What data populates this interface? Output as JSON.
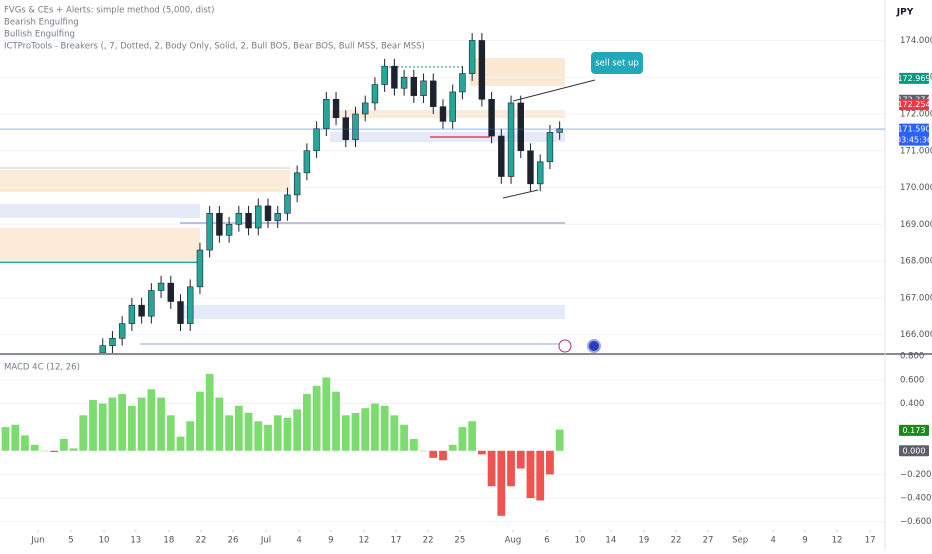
{
  "header": {
    "currency": "JPY"
  },
  "chart_data": [
    {
      "type": "candlestick",
      "legend_lines": [
        "FVGs & CEs + Alerts: simple method (5,000, dist)",
        "Bearish Engulfing",
        "Bullish Engulfing",
        "ICTProTools - Breakers (, 7, Dotted, 2, Body Only, Solid, 2, Bull BOS, Bear BOS, Bull MSS, Bear MSS)"
      ],
      "annotation": "sell set up",
      "x": [
        2,
        2.3,
        2.6,
        2.9,
        3.2,
        3.5,
        3.8,
        4.1,
        4.4,
        4.7,
        5,
        5.3,
        5.6,
        5.9,
        6.2,
        6.5,
        6.8,
        7.1,
        7.4,
        7.7,
        8,
        8.3,
        8.6,
        8.9,
        9.2,
        9.5,
        9.8,
        10.1,
        10.4,
        10.7,
        11,
        11.3,
        11.6,
        11.9,
        12.2,
        12.5,
        12.8,
        13.1,
        13.4,
        13.7,
        14,
        14.3,
        14.6,
        14.9,
        15.2,
        15.5,
        15.8,
        16.1
      ],
      "open": [
        165.5,
        165.7,
        165.9,
        166.3,
        166.8,
        166.5,
        167.2,
        167.4,
        166.9,
        166.3,
        167.3,
        168.3,
        169.3,
        168.7,
        169.0,
        169.3,
        168.9,
        169.5,
        169.1,
        169.3,
        169.8,
        170.4,
        171.0,
        171.6,
        172.4,
        171.9,
        171.3,
        172.0,
        172.3,
        172.8,
        173.3,
        172.7,
        173.0,
        172.5,
        172.9,
        172.2,
        171.8,
        172.6,
        173.1,
        174.0,
        172.4,
        171.4,
        170.3,
        172.3,
        171.0,
        170.1,
        170.7,
        171.5
      ],
      "high": [
        165.9,
        166.1,
        166.5,
        167.0,
        167.0,
        167.4,
        167.6,
        167.6,
        167.1,
        167.5,
        168.5,
        169.5,
        169.5,
        169.2,
        169.5,
        169.5,
        169.7,
        169.7,
        169.5,
        170.0,
        170.6,
        171.2,
        171.8,
        172.6,
        172.6,
        172.1,
        172.2,
        172.5,
        173.0,
        173.5,
        173.5,
        173.2,
        173.2,
        173.1,
        173.1,
        172.4,
        172.8,
        173.3,
        174.2,
        174.2,
        172.6,
        171.6,
        172.5,
        172.5,
        171.2,
        170.9,
        171.7,
        171.8
      ],
      "low": [
        165.3,
        165.5,
        165.7,
        166.1,
        166.3,
        166.3,
        167.0,
        166.7,
        166.1,
        166.1,
        167.1,
        168.1,
        168.5,
        168.5,
        168.8,
        168.7,
        168.7,
        168.9,
        168.9,
        169.1,
        169.6,
        170.2,
        170.8,
        171.4,
        171.7,
        171.1,
        171.1,
        171.8,
        172.1,
        172.6,
        172.5,
        172.5,
        172.3,
        172.3,
        172.0,
        171.6,
        171.6,
        172.4,
        172.9,
        172.2,
        171.2,
        170.1,
        170.1,
        170.8,
        169.9,
        169.9,
        170.5,
        171.3
      ],
      "close": [
        165.7,
        165.9,
        166.3,
        166.8,
        166.5,
        167.2,
        167.4,
        166.9,
        166.3,
        167.3,
        168.3,
        169.3,
        168.7,
        169.0,
        169.3,
        168.9,
        169.5,
        169.1,
        169.3,
        169.8,
        170.4,
        171.0,
        171.6,
        172.4,
        171.9,
        171.3,
        172.0,
        172.3,
        172.8,
        173.3,
        172.7,
        173.0,
        172.5,
        172.9,
        172.2,
        171.8,
        172.6,
        173.1,
        174.0,
        172.4,
        171.4,
        170.3,
        172.3,
        171.0,
        170.1,
        170.7,
        171.5,
        171.6
      ],
      "up_color": "#26a69a",
      "down_color": "#1e222d",
      "xlim": [
        -1.17,
        26.14
      ],
      "ylim": [
        165.5,
        175.1
      ],
      "yticks": [
        {
          "value": 166,
          "label": "166.000"
        },
        {
          "value": 167,
          "label": "167.000"
        },
        {
          "value": 168,
          "label": "168.000"
        },
        {
          "value": 169,
          "label": "169.000"
        },
        {
          "value": 170,
          "label": "170.000"
        },
        {
          "value": 171,
          "label": "171.000"
        },
        {
          "value": 172,
          "label": "172.000"
        },
        {
          "value": 173,
          "label": "173.000"
        },
        {
          "value": 174,
          "label": "174.000"
        }
      ],
      "price_labels": [
        {
          "value": 172.969,
          "label": "172.969",
          "color": "#089981"
        },
        {
          "value": 172.374,
          "label": "172.374",
          "color": "#5d606b"
        },
        {
          "value": 172.254,
          "label": "172.254",
          "color": "#f23645"
        },
        {
          "value": 171.59,
          "label": "171.590",
          "color": "#2962ff",
          "countdown": "03:45:36"
        }
      ]
    },
    {
      "type": "bar",
      "title": "MACD 4C (12, 26)",
      "x": [
        -1,
        -0.7,
        -0.4,
        -0.1,
        0.2,
        0.5,
        0.8,
        1.1,
        1.4,
        1.7,
        2,
        2.3,
        2.6,
        2.9,
        3.2,
        3.5,
        3.8,
        4.1,
        4.4,
        4.7,
        5,
        5.3,
        5.6,
        5.9,
        6.2,
        6.5,
        6.8,
        7.1,
        7.4,
        7.7,
        8,
        8.3,
        8.6,
        8.9,
        9.2,
        9.5,
        9.8,
        10.1,
        10.4,
        10.7,
        11,
        11.3,
        11.6,
        11.9,
        12.2,
        12.5,
        12.8,
        13.1,
        13.4,
        13.7,
        14,
        14.3,
        14.6,
        14.9,
        15.2,
        15.5,
        15.8,
        16.1
      ],
      "values": [
        0.2,
        0.22,
        0.13,
        0.05,
        0.0,
        -0.01,
        0.1,
        0.02,
        0.3,
        0.43,
        0.4,
        0.45,
        0.48,
        0.38,
        0.45,
        0.52,
        0.45,
        0.3,
        0.12,
        0.25,
        0.5,
        0.65,
        0.45,
        0.3,
        0.38,
        0.32,
        0.25,
        0.22,
        0.3,
        0.28,
        0.35,
        0.48,
        0.55,
        0.62,
        0.5,
        0.3,
        0.32,
        0.36,
        0.4,
        0.38,
        0.3,
        0.22,
        0.1,
        0.0,
        -0.06,
        -0.08,
        0.05,
        0.2,
        0.25,
        -0.03,
        -0.3,
        -0.55,
        -0.3,
        -0.15,
        -0.4,
        -0.42,
        -0.2,
        0.18
      ],
      "up_color": "#7ddc6f",
      "down_color": "#ef5350",
      "xlim": [
        -1.17,
        26.14
      ],
      "ylim": [
        -0.67,
        0.81
      ],
      "yticks": [
        {
          "value": -0.6,
          "label": "−0.600"
        },
        {
          "value": -0.4,
          "label": "−0.400"
        },
        {
          "value": -0.2,
          "label": "−0.200"
        },
        {
          "value": 0.4,
          "label": "0.400"
        },
        {
          "value": 0.6,
          "label": "0.600"
        },
        {
          "value": 0.8,
          "label": "0.800"
        }
      ],
      "price_labels": [
        {
          "value": 0.173,
          "label": "0.173",
          "color": "#1b8a1b"
        },
        {
          "value": 0,
          "label": "0.000",
          "color": "#5d606b"
        }
      ],
      "xticks": [
        {
          "value": 0,
          "label": "Jun"
        },
        {
          "value": 1.02,
          "label": "5"
        },
        {
          "value": 2.04,
          "label": "10"
        },
        {
          "value": 3.02,
          "label": "13"
        },
        {
          "value": 4.04,
          "label": "18"
        },
        {
          "value": 5.03,
          "label": "22"
        },
        {
          "value": 6.02,
          "label": "26"
        },
        {
          "value": 7.04,
          "label": "Jul"
        },
        {
          "value": 8.06,
          "label": "4"
        },
        {
          "value": 9.04,
          "label": "9"
        },
        {
          "value": 10.06,
          "label": "12"
        },
        {
          "value": 11.05,
          "label": "17"
        },
        {
          "value": 12.04,
          "label": "22"
        },
        {
          "value": 13.02,
          "label": "25"
        },
        {
          "value": 14.66,
          "label": "Aug"
        },
        {
          "value": 15.71,
          "label": "6"
        },
        {
          "value": 16.73,
          "label": "10"
        },
        {
          "value": 17.68,
          "label": "14"
        },
        {
          "value": 18.7,
          "label": "19"
        },
        {
          "value": 19.69,
          "label": "22"
        },
        {
          "value": 20.68,
          "label": "27"
        },
        {
          "value": 21.67,
          "label": "Sep"
        },
        {
          "value": 22.69,
          "label": "4"
        },
        {
          "value": 23.67,
          "label": "9"
        },
        {
          "value": 24.66,
          "label": "12"
        },
        {
          "value": 25.68,
          "label": "17"
        }
      ]
    }
  ]
}
